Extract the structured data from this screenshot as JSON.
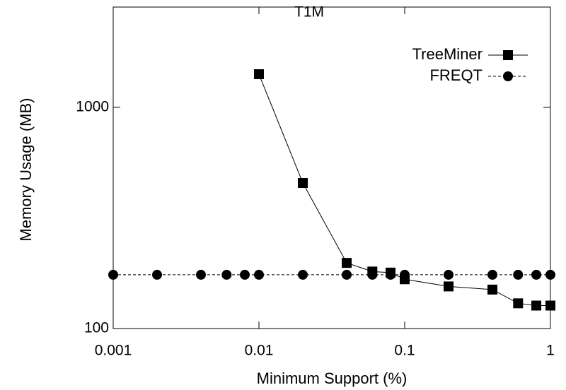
{
  "chart_data": {
    "type": "line",
    "title": "T1M",
    "x_label": "Minimum Support (%)",
    "y_label": "Memory Usage (MB)",
    "xscale": "log",
    "yscale": "log",
    "xlim": [
      0.001,
      1
    ],
    "ylim": [
      100,
      2840
    ],
    "xticks": [
      0.001,
      0.01,
      0.1,
      1
    ],
    "yticks": [
      100,
      1000
    ],
    "legend": "upper right",
    "series": [
      {
        "name": "TreeMiner",
        "color": "#000000",
        "linestyle": "solid",
        "marker": "square",
        "x": [
          0.01,
          0.02,
          0.04,
          0.06,
          0.08,
          0.1,
          0.2,
          0.4,
          0.6,
          0.8,
          1
        ],
        "values": [
          1412,
          455,
          198,
          181,
          179,
          167,
          155,
          150,
          130,
          127,
          127
        ]
      },
      {
        "name": "FREQT",
        "color": "#000000",
        "linestyle": "dashed",
        "marker": "circle",
        "x": [
          0.001,
          0.002,
          0.004,
          0.006,
          0.008,
          0.01,
          0.02,
          0.04,
          0.06,
          0.08,
          0.1,
          0.2,
          0.4,
          0.6,
          0.8,
          1
        ],
        "values": [
          175,
          175,
          175,
          175,
          175,
          175,
          175,
          175,
          175,
          175,
          175,
          175,
          175,
          175,
          175,
          175
        ]
      }
    ]
  }
}
